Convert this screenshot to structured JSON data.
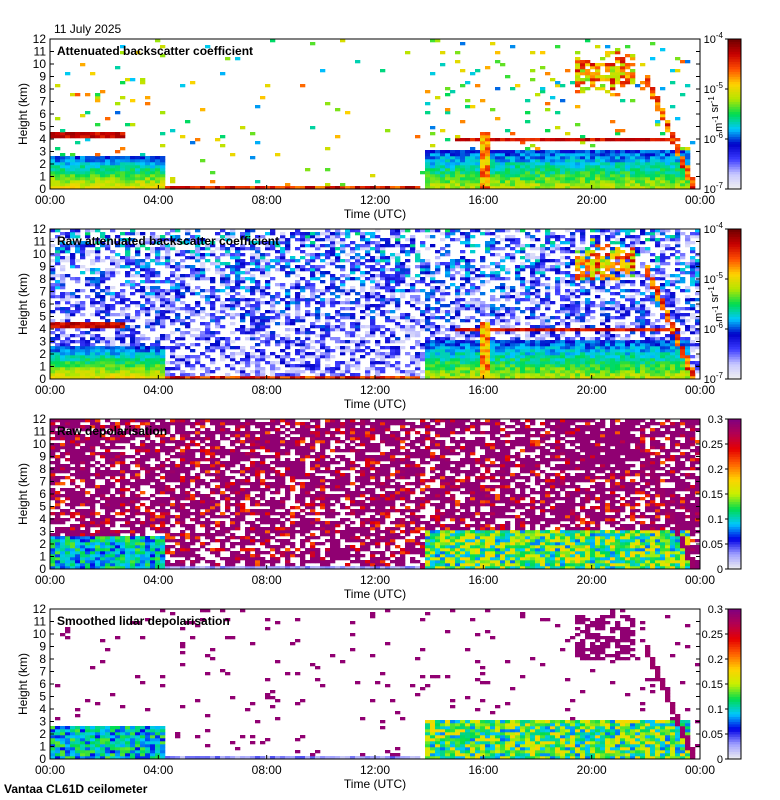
{
  "date_label": "11 July 2025",
  "footer_label": "Vantaa CL61D ceilometer",
  "colors": {
    "backscatter_colormap": [
      "#f0f0f0",
      "#c9c9ff",
      "#3c3cff",
      "#0000c8",
      "#00c8ff",
      "#00dc50",
      "#b4e600",
      "#ffd200",
      "#ff5000",
      "#c80000",
      "#6e0000"
    ],
    "depol_colormap": [
      "#f0f0f0",
      "#a0a0ff",
      "#0000e6",
      "#00c8ff",
      "#00dc50",
      "#c8f000",
      "#ffd200",
      "#ff6400",
      "#e60000",
      "#b40050",
      "#800080"
    ]
  },
  "chart_data": [
    {
      "type": "heatmap",
      "title": "Attenuated backscatter coefficient",
      "xlabel": "Time (UTC)",
      "ylabel": "Height (km)",
      "x_ticks": [
        "00:00",
        "04:00",
        "08:00",
        "12:00",
        "16:00",
        "20:00",
        "00:00"
      ],
      "xlim": [
        0,
        24
      ],
      "y_ticks": [
        0,
        1,
        2,
        3,
        4,
        5,
        6,
        7,
        8,
        9,
        10,
        11,
        12
      ],
      "ylim": [
        0,
        12
      ],
      "colorbar": {
        "scale": "log",
        "range": [
          1e-07,
          0.0001
        ],
        "ticks": [
          "10-7",
          "10-6",
          "10-5",
          "10-4"
        ],
        "unit": "m-1 sr-1"
      },
      "features": [
        {
          "kind": "boundary_layer",
          "t_start": 0,
          "t_end": 4.2,
          "top_km": 2.5
        },
        {
          "kind": "cloud_layer",
          "t_start": 0,
          "t_end": 2.7,
          "height_km": 4.3
        },
        {
          "kind": "surface_layer",
          "t_start": 4.3,
          "t_end": 13.5,
          "top_km": 0.3
        },
        {
          "kind": "boundary_layer",
          "t_start": 13.8,
          "t_end": 23.5,
          "top_km": 3.0
        },
        {
          "kind": "cloud_layer",
          "t_start": 15.0,
          "t_end": 23.0,
          "height_km": 4.0
        },
        {
          "kind": "cloud_layer",
          "t_start": 19.5,
          "t_end": 21.5,
          "height_km": 9.0
        },
        {
          "kind": "precipitation",
          "t_start": 15.8,
          "t_end": 16.2,
          "top_km": 4.5
        }
      ]
    },
    {
      "type": "heatmap",
      "title": "Raw attenuated backscatter coefficient",
      "xlabel": "Time (UTC)",
      "ylabel": "Height (km)",
      "x_ticks": [
        "00:00",
        "04:00",
        "08:00",
        "12:00",
        "16:00",
        "20:00",
        "00:00"
      ],
      "xlim": [
        0,
        24
      ],
      "y_ticks": [
        0,
        1,
        2,
        3,
        4,
        5,
        6,
        7,
        8,
        9,
        10,
        11,
        12
      ],
      "ylim": [
        0,
        12
      ],
      "colorbar": {
        "scale": "log",
        "range": [
          1e-07,
          0.0001
        ],
        "ticks": [
          "10-7",
          "10-6",
          "10-5",
          "10-4"
        ],
        "unit": "m-1 sr-1"
      }
    },
    {
      "type": "heatmap",
      "title": "Raw depolarisation",
      "xlabel": "Time (UTC)",
      "ylabel": "Height (km)",
      "x_ticks": [
        "00:00",
        "04:00",
        "08:00",
        "12:00",
        "16:00",
        "20:00",
        "00:00"
      ],
      "xlim": [
        0,
        24
      ],
      "y_ticks": [
        0,
        1,
        2,
        3,
        4,
        5,
        6,
        7,
        8,
        9,
        10,
        11,
        12
      ],
      "ylim": [
        0,
        12
      ],
      "colorbar": {
        "scale": "linear",
        "range": [
          0,
          0.3
        ],
        "ticks": [
          "0",
          "0.05",
          "0.1",
          "0.15",
          "0.2",
          "0.25",
          "0.3"
        ]
      }
    },
    {
      "type": "heatmap",
      "title": "Smoothed lidar depolarisation",
      "xlabel": "Time (UTC)",
      "ylabel": "Height (km)",
      "x_ticks": [
        "00:00",
        "04:00",
        "08:00",
        "12:00",
        "16:00",
        "20:00",
        "00:00"
      ],
      "xlim": [
        0,
        24
      ],
      "y_ticks": [
        0,
        1,
        2,
        3,
        4,
        5,
        6,
        7,
        8,
        9,
        10,
        11,
        12
      ],
      "ylim": [
        0,
        12
      ],
      "colorbar": {
        "scale": "linear",
        "range": [
          0,
          0.3
        ],
        "ticks": [
          "0",
          "0.05",
          "0.1",
          "0.15",
          "0.2",
          "0.25",
          "0.3"
        ]
      }
    }
  ]
}
